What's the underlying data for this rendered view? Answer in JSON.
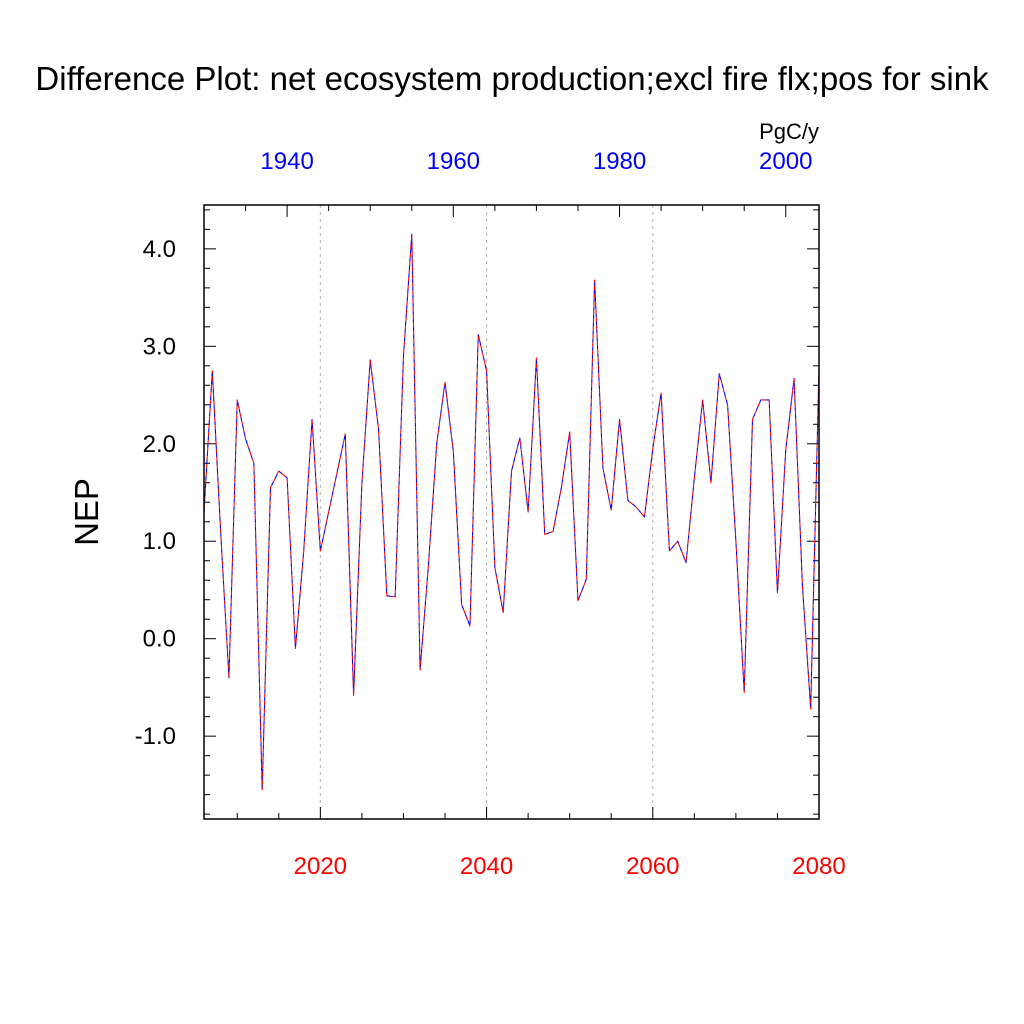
{
  "chart_data": {
    "type": "line",
    "title": "Difference Plot: net ecosystem production;excl fire flx;pos for sink",
    "units_label": "PgC/y",
    "ylabel": "NEP",
    "xlabel": "",
    "ylim": [
      -1.85,
      4.45
    ],
    "y_ticks": [
      -1.0,
      0.0,
      1.0,
      2.0,
      3.0,
      4.0
    ],
    "y_tick_labels": [
      "-1.0",
      "0.0",
      "1.0",
      "2.0",
      "3.0",
      "4.0"
    ],
    "x_bottom": {
      "range": [
        2006,
        2080
      ],
      "ticks": [
        2020,
        2040,
        2060,
        2080
      ],
      "tick_labels": [
        "2020",
        "2040",
        "2060",
        "2080"
      ],
      "color": "#ff0000"
    },
    "x_top": {
      "range": [
        1930,
        2004
      ],
      "ticks": [
        1940,
        1960,
        1980,
        2000
      ],
      "tick_labels": [
        "1940",
        "1960",
        "1980",
        "2000"
      ],
      "color": "#0000ff"
    },
    "grid": "vertical dashed at major bottom ticks",
    "series": [
      {
        "color": "#0000ff",
        "dashed": true,
        "x": [
          2006,
          2007,
          2008,
          2009,
          2010,
          2011,
          2012,
          2013,
          2014,
          2015,
          2016,
          2017,
          2018,
          2019,
          2020,
          2021,
          2022,
          2023,
          2024,
          2025,
          2026,
          2027,
          2028,
          2029,
          2030,
          2031,
          2032,
          2033,
          2034,
          2035,
          2036,
          2037,
          2038,
          2039,
          2040,
          2041,
          2042,
          2043,
          2044,
          2045,
          2046,
          2047,
          2048,
          2049,
          2050,
          2051,
          2052,
          2053,
          2054,
          2055,
          2056,
          2057,
          2058,
          2059,
          2060,
          2061,
          2062,
          2063,
          2064,
          2065,
          2066,
          2067,
          2068,
          2069,
          2070,
          2071,
          2072,
          2073,
          2074,
          2075,
          2076,
          2077,
          2078,
          2079,
          2080
        ],
        "values": [
          1.3,
          2.75,
          1.1,
          -0.4,
          2.45,
          2.05,
          1.8,
          -1.55,
          1.55,
          1.72,
          1.65,
          -0.1,
          0.9,
          2.25,
          0.9,
          1.3,
          1.7,
          2.1,
          -0.58,
          1.6,
          2.86,
          2.15,
          0.44,
          0.43,
          2.9,
          4.15,
          -0.32,
          0.75,
          2.0,
          2.63,
          1.92,
          0.35,
          0.13,
          3.12,
          2.75,
          0.73,
          0.27,
          1.72,
          2.06,
          1.3,
          2.88,
          1.07,
          1.1,
          1.55,
          2.12,
          0.39,
          0.61,
          3.68,
          1.75,
          1.32,
          2.25,
          1.42,
          1.35,
          1.25,
          1.95,
          2.52,
          0.9,
          1.0,
          0.78,
          1.65,
          2.45,
          1.6,
          2.72,
          2.4,
          1.0,
          -0.55,
          2.25,
          2.45,
          2.45,
          0.47,
          1.94,
          2.67,
          0.55,
          -0.72,
          2.78
        ]
      },
      {
        "color": "#ff0000",
        "dashed": true,
        "x": [
          2006,
          2007,
          2008,
          2009,
          2010,
          2011,
          2012,
          2013,
          2014,
          2015,
          2016,
          2017,
          2018,
          2019,
          2020,
          2021,
          2022,
          2023,
          2024,
          2025,
          2026,
          2027,
          2028,
          2029,
          2030,
          2031,
          2032,
          2033,
          2034,
          2035,
          2036,
          2037,
          2038,
          2039,
          2040,
          2041,
          2042,
          2043,
          2044,
          2045,
          2046,
          2047,
          2048,
          2049,
          2050,
          2051,
          2052,
          2053,
          2054,
          2055,
          2056,
          2057,
          2058,
          2059,
          2060,
          2061,
          2062,
          2063,
          2064,
          2065,
          2066,
          2067,
          2068,
          2069,
          2070,
          2071,
          2072,
          2073,
          2074,
          2075,
          2076,
          2077,
          2078,
          2079,
          2080
        ],
        "values": [
          1.3,
          2.75,
          1.1,
          -0.4,
          2.45,
          2.05,
          1.8,
          -1.55,
          1.55,
          1.72,
          1.65,
          -0.1,
          0.9,
          2.25,
          0.9,
          1.3,
          1.7,
          2.1,
          -0.58,
          1.6,
          2.86,
          2.15,
          0.44,
          0.43,
          2.9,
          4.15,
          -0.32,
          0.75,
          2.0,
          2.63,
          1.92,
          0.35,
          0.13,
          3.12,
          2.75,
          0.73,
          0.27,
          1.72,
          2.06,
          1.3,
          2.88,
          1.07,
          1.1,
          1.55,
          2.12,
          0.39,
          0.61,
          3.68,
          1.75,
          1.32,
          2.25,
          1.42,
          1.35,
          1.25,
          1.95,
          2.52,
          0.9,
          1.0,
          0.78,
          1.65,
          2.45,
          1.6,
          2.72,
          2.4,
          1.0,
          -0.55,
          2.25,
          2.45,
          2.45,
          0.47,
          1.94,
          2.67,
          0.55,
          -0.72,
          2.78
        ]
      }
    ]
  }
}
